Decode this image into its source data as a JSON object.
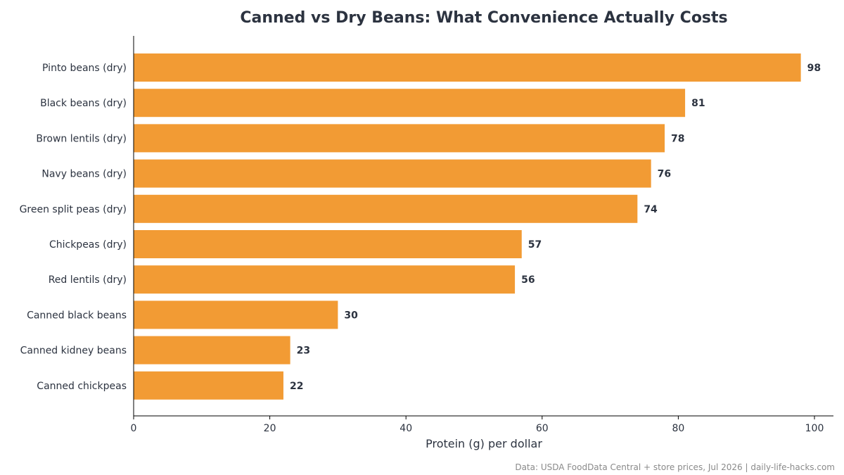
{
  "chart_data": {
    "type": "bar",
    "orientation": "horizontal",
    "title": "Canned vs Dry Beans: What Convenience Actually Costs",
    "xlabel": "Protein (g) per dollar",
    "ylabel": "",
    "categories": [
      "Pinto beans (dry)",
      "Black beans (dry)",
      "Brown lentils (dry)",
      "Navy beans (dry)",
      "Green split peas (dry)",
      "Chickpeas (dry)",
      "Red lentils (dry)",
      "Canned black beans",
      "Canned kidney beans",
      "Canned chickpeas"
    ],
    "values": [
      98,
      81,
      78,
      76,
      74,
      57,
      56,
      30,
      23,
      22
    ],
    "data_labels": [
      "98",
      "81",
      "78",
      "76",
      "74",
      "57",
      "56",
      "30",
      "23",
      "22"
    ],
    "xlim": [
      0,
      100
    ],
    "xticks": [
      0,
      20,
      40,
      60,
      80,
      100
    ],
    "xtick_labels": [
      "0",
      "20",
      "40",
      "60",
      "80",
      "100"
    ],
    "grid": false,
    "bar_color": "#f29b34",
    "text_color": "#2c3340",
    "source": "Data: USDA FoodData Central + store prices, Jul 2026 | daily-life-hacks.com"
  }
}
